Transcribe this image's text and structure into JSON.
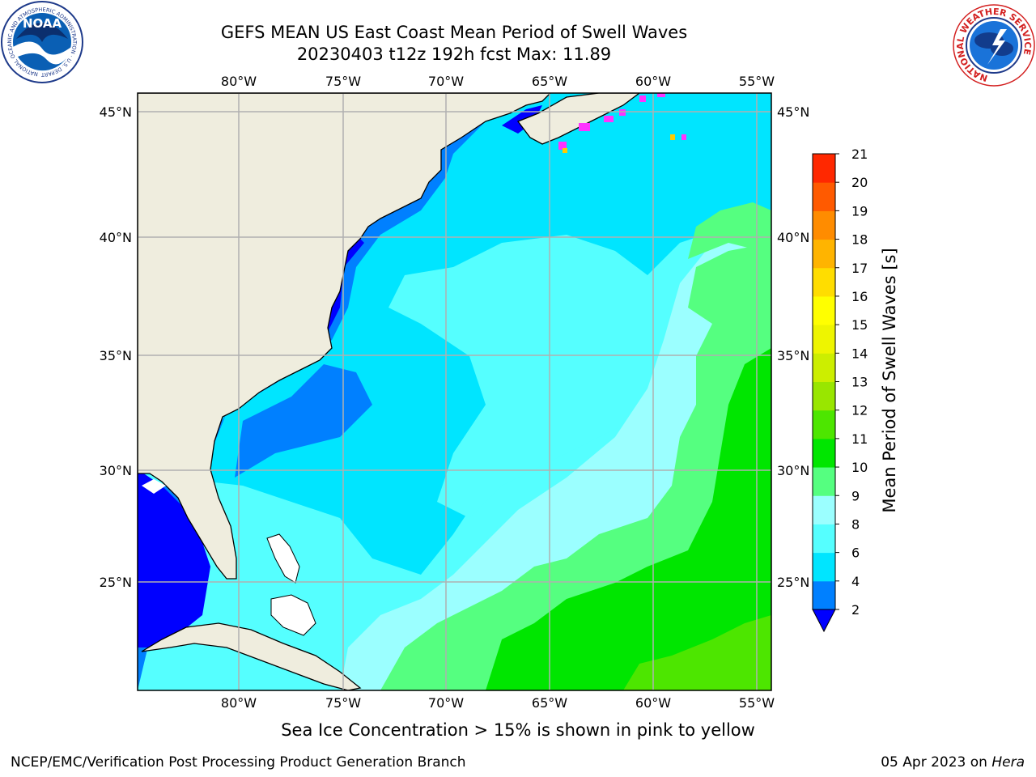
{
  "title": {
    "line1": "GEFS MEAN US East Coast Mean Period of Swell Waves",
    "line2": "20230403 t12z 192h fcst   Max: 11.89"
  },
  "logos": {
    "left": {
      "text": "NOAA",
      "ring_text": "NATIONAL OCEANIC AND ATMOSPHERIC ADMINISTRATION · U.S. DEPARTMENT OF COMMERCE"
    },
    "right": {
      "ring_text": "NATIONAL WEATHER SERVICE"
    }
  },
  "map": {
    "lon_range": [
      -85,
      -55
    ],
    "lat_range": [
      20.5,
      46
    ],
    "lon_ticks": [
      "80°W",
      "75°W",
      "70°W",
      "65°W",
      "60°W",
      "55°W"
    ],
    "lat_ticks": [
      "45°N",
      "40°N",
      "35°N",
      "30°N",
      "25°N"
    ],
    "grid": true,
    "colors": {
      "land": "#efedde",
      "gridline": "#b0b0b0",
      "coast": "#000000"
    }
  },
  "colorbar": {
    "label": "Mean Period of Swell Waves [s]",
    "ticks": [
      "2",
      "4",
      "6",
      "8",
      "9",
      "10",
      "11",
      "12",
      "13",
      "14",
      "15",
      "16",
      "17",
      "18",
      "19",
      "20",
      "21"
    ],
    "colors": [
      "#0080ff",
      "#00e5ff",
      "#55ffff",
      "#9bffff",
      "#55ff80",
      "#00e600",
      "#4de600",
      "#99e600",
      "#ccee00",
      "#eef500",
      "#ffff00",
      "#ffdd00",
      "#ffb400",
      "#ff8c00",
      "#ff5a00",
      "#ff2800"
    ],
    "under_color": "#0000ff",
    "extend": "min"
  },
  "subtitle": "Sea Ice Concentration > 15% is shown in pink to yellow",
  "footer": {
    "left": "NCEP/EMC/Verification Post Processing Product Generation Branch",
    "right_date": "05 Apr 2023 on ",
    "right_host": "Hera"
  }
}
